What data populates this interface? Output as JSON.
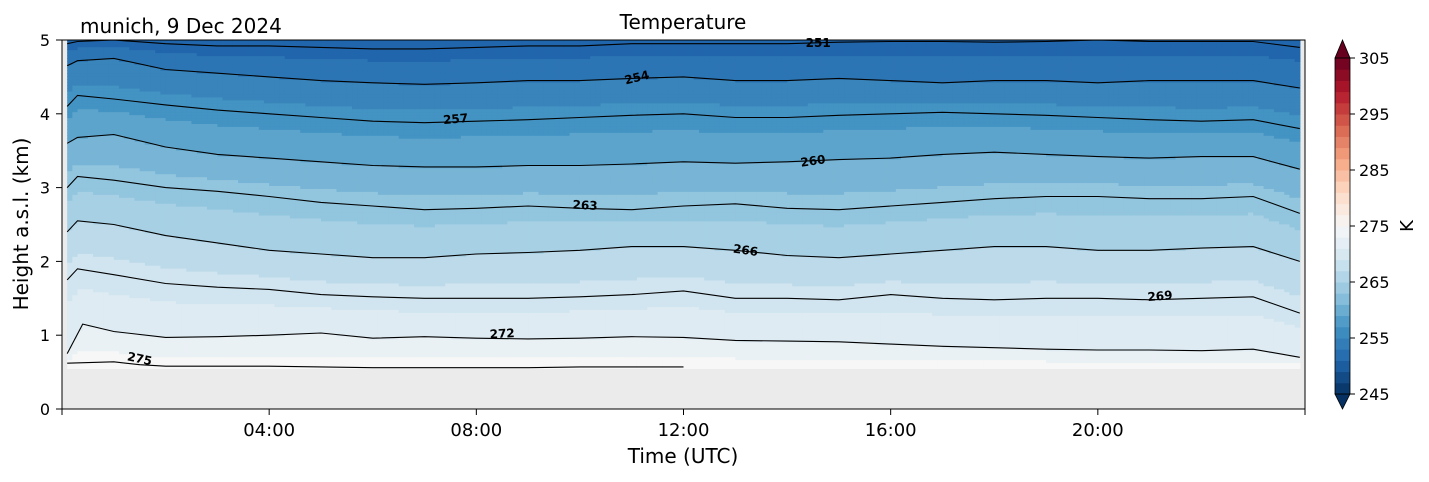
{
  "chart_data": {
    "type": "heatmap",
    "title": "Temperature",
    "subtitle": "munich, 9 Dec 2024",
    "xlabel": "Time (UTC)",
    "ylabel": "Height a.s.l. (km)",
    "xlim": [
      0,
      24
    ],
    "ylim": [
      0,
      5
    ],
    "x_ticks": [
      4,
      8,
      12,
      16,
      20
    ],
    "x_tick_labels": [
      "04:00",
      "08:00",
      "12:00",
      "16:00",
      "20:00"
    ],
    "y_ticks": [
      0,
      1,
      2,
      3,
      4,
      5
    ],
    "y_tick_labels": [
      "0",
      "1",
      "2",
      "3",
      "4",
      "5"
    ],
    "data_height_min_km": 0.55,
    "colorbar": {
      "label": "K",
      "min": 245,
      "max": 305,
      "step": 2,
      "ticks": [
        245,
        255,
        265,
        275,
        285,
        295,
        305
      ],
      "tick_labels": [
        "245",
        "255",
        "265",
        "275",
        "285",
        "295",
        "305"
      ],
      "colormap": "RdBu_r",
      "extend": "both"
    },
    "contours": [
      {
        "level": 275,
        "label": "275",
        "x": [
          0.1,
          1.0,
          1.5,
          2.0,
          3.0,
          4.0,
          5.0,
          6.0,
          7.0,
          8.0,
          9.0,
          10.0,
          11.0,
          12.0
        ],
        "y": [
          0.62,
          0.64,
          0.6,
          0.58,
          0.58,
          0.58,
          0.57,
          0.56,
          0.56,
          0.56,
          0.56,
          0.57,
          0.57,
          0.57
        ]
      },
      {
        "level": 272,
        "label": "272",
        "x": [
          0.1,
          0.4,
          1.0,
          2.0,
          3.0,
          4.0,
          5.0,
          6.0,
          7.0,
          8.0,
          9.0,
          10.0,
          11.0,
          12.0,
          13.0,
          14.0,
          15.0,
          16.0,
          17.0,
          18.0,
          19.0,
          20.0,
          21.0,
          22.0,
          23.0,
          23.9
        ],
        "y": [
          0.75,
          1.15,
          1.05,
          0.97,
          0.98,
          1.0,
          1.03,
          0.96,
          0.98,
          0.96,
          0.95,
          0.96,
          0.98,
          0.97,
          0.93,
          0.92,
          0.91,
          0.88,
          0.85,
          0.83,
          0.81,
          0.8,
          0.8,
          0.79,
          0.81,
          0.7
        ]
      },
      {
        "level": 269,
        "label": "269",
        "x": [
          0.1,
          0.3,
          1.0,
          2.0,
          3.0,
          4.0,
          5.0,
          6.0,
          7.0,
          8.0,
          9.0,
          10.0,
          11.0,
          12.0,
          13.0,
          14.0,
          15.0,
          16.0,
          17.0,
          18.0,
          19.0,
          20.0,
          21.0,
          22.0,
          23.0,
          23.9
        ],
        "y": [
          1.75,
          1.9,
          1.82,
          1.7,
          1.65,
          1.62,
          1.55,
          1.52,
          1.5,
          1.5,
          1.5,
          1.52,
          1.55,
          1.6,
          1.5,
          1.5,
          1.48,
          1.55,
          1.5,
          1.48,
          1.5,
          1.5,
          1.48,
          1.5,
          1.52,
          1.3
        ]
      },
      {
        "level": 266,
        "label": "266",
        "x": [
          0.1,
          0.3,
          1.0,
          2.0,
          3.0,
          4.0,
          5.0,
          6.0,
          7.0,
          8.0,
          9.0,
          10.0,
          11.0,
          12.0,
          13.0,
          14.0,
          15.0,
          16.0,
          17.0,
          18.0,
          19.0,
          20.0,
          21.0,
          22.0,
          23.0,
          23.9
        ],
        "y": [
          2.4,
          2.55,
          2.5,
          2.35,
          2.25,
          2.15,
          2.1,
          2.05,
          2.05,
          2.1,
          2.12,
          2.15,
          2.2,
          2.2,
          2.15,
          2.08,
          2.05,
          2.1,
          2.15,
          2.2,
          2.2,
          2.15,
          2.15,
          2.18,
          2.2,
          2.0
        ]
      },
      {
        "level": 263,
        "label": "263",
        "x": [
          0.1,
          0.3,
          1.0,
          2.0,
          3.0,
          4.0,
          5.0,
          6.0,
          7.0,
          8.0,
          9.0,
          10.0,
          11.0,
          12.0,
          13.0,
          14.0,
          15.0,
          16.0,
          17.0,
          18.0,
          19.0,
          20.0,
          21.0,
          22.0,
          23.0,
          23.9
        ],
        "y": [
          3.0,
          3.15,
          3.1,
          3.0,
          2.95,
          2.88,
          2.8,
          2.75,
          2.7,
          2.72,
          2.75,
          2.72,
          2.7,
          2.75,
          2.78,
          2.72,
          2.7,
          2.75,
          2.8,
          2.85,
          2.88,
          2.88,
          2.85,
          2.85,
          2.88,
          2.65
        ]
      },
      {
        "level": 260,
        "label": "260",
        "x": [
          0.1,
          0.3,
          1.0,
          2.0,
          3.0,
          4.0,
          5.0,
          6.0,
          7.0,
          8.0,
          9.0,
          10.0,
          11.0,
          12.0,
          13.0,
          14.0,
          15.0,
          16.0,
          17.0,
          18.0,
          19.0,
          20.0,
          21.0,
          22.0,
          23.0,
          23.9
        ],
        "y": [
          3.6,
          3.68,
          3.72,
          3.55,
          3.45,
          3.4,
          3.35,
          3.3,
          3.28,
          3.28,
          3.3,
          3.3,
          3.32,
          3.35,
          3.33,
          3.35,
          3.38,
          3.4,
          3.45,
          3.48,
          3.45,
          3.42,
          3.4,
          3.42,
          3.42,
          3.25
        ]
      },
      {
        "level": 257,
        "label": "257",
        "x": [
          0.1,
          0.3,
          1.0,
          2.0,
          3.0,
          4.0,
          5.0,
          6.0,
          7.0,
          8.0,
          9.0,
          10.0,
          11.0,
          12.0,
          13.0,
          14.0,
          15.0,
          16.0,
          17.0,
          18.0,
          19.0,
          20.0,
          21.0,
          22.0,
          23.0,
          23.9
        ],
        "y": [
          4.1,
          4.25,
          4.2,
          4.12,
          4.05,
          4.0,
          3.95,
          3.9,
          3.88,
          3.9,
          3.92,
          3.95,
          3.98,
          4.0,
          3.95,
          3.95,
          3.98,
          4.0,
          4.02,
          4.0,
          3.98,
          3.95,
          3.92,
          3.9,
          3.92,
          3.8
        ]
      },
      {
        "level": 254,
        "label": "254",
        "x": [
          0.1,
          0.3,
          1.0,
          2.0,
          3.0,
          4.0,
          5.0,
          6.0,
          7.0,
          8.0,
          9.0,
          10.0,
          11.0,
          12.0,
          13.0,
          14.0,
          15.0,
          16.0,
          17.0,
          18.0,
          19.0,
          20.0,
          21.0,
          22.0,
          23.0,
          23.9
        ],
        "y": [
          4.65,
          4.72,
          4.75,
          4.6,
          4.55,
          4.5,
          4.45,
          4.42,
          4.4,
          4.42,
          4.45,
          4.45,
          4.48,
          4.5,
          4.45,
          4.45,
          4.48,
          4.45,
          4.42,
          4.45,
          4.45,
          4.42,
          4.45,
          4.45,
          4.45,
          4.35
        ]
      },
      {
        "level": 251,
        "label": "251",
        "x": [
          0.1,
          0.3,
          1.0,
          2.0,
          3.0,
          4.0,
          5.0,
          6.0,
          7.0,
          8.0,
          9.0,
          10.0,
          11.0,
          12.0,
          13.0,
          14.0,
          15.0,
          16.0,
          17.0,
          18.0,
          19.0,
          20.0,
          21.0,
          22.0,
          23.0,
          23.9
        ],
        "y": [
          4.95,
          4.98,
          5.0,
          4.95,
          4.92,
          4.92,
          4.9,
          4.88,
          4.88,
          4.9,
          4.92,
          4.92,
          4.95,
          4.95,
          4.95,
          4.95,
          4.97,
          4.98,
          4.98,
          4.97,
          4.98,
          5.0,
          4.98,
          4.98,
          4.98,
          4.9
        ]
      }
    ],
    "contour_labels": [
      {
        "text": "275",
        "x": 1.5,
        "y": 0.68,
        "rot": 12
      },
      {
        "text": "272",
        "x": 8.5,
        "y": 1.02,
        "rot": -3
      },
      {
        "text": "269",
        "x": 21.2,
        "y": 1.53,
        "rot": -5
      },
      {
        "text": "266",
        "x": 13.2,
        "y": 2.15,
        "rot": 8
      },
      {
        "text": "263",
        "x": 10.1,
        "y": 2.76,
        "rot": 3
      },
      {
        "text": "260",
        "x": 14.5,
        "y": 3.36,
        "rot": -8
      },
      {
        "text": "257",
        "x": 7.6,
        "y": 3.93,
        "rot": -5
      },
      {
        "text": "254",
        "x": 11.1,
        "y": 4.49,
        "rot": -14
      },
      {
        "text": "251",
        "x": 14.6,
        "y": 4.96,
        "rot": 0
      }
    ]
  }
}
